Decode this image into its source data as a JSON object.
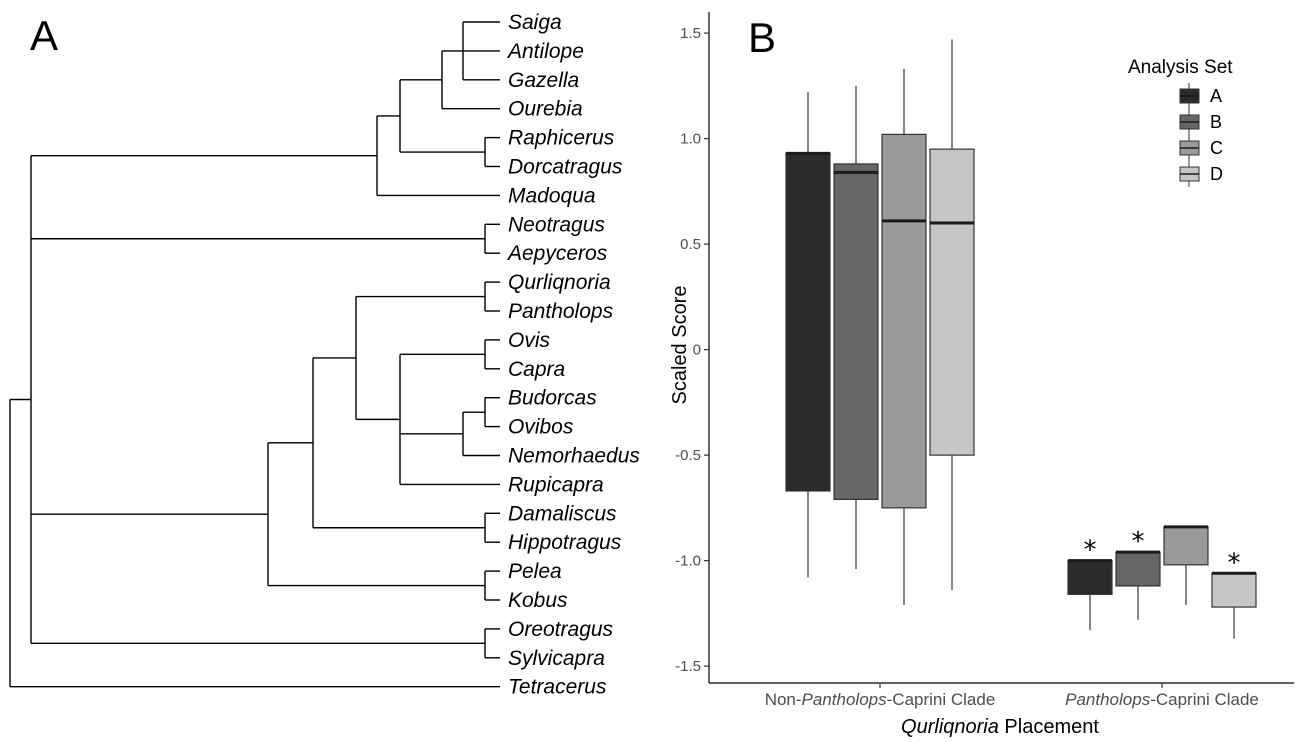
{
  "panels": {
    "a_label": "A",
    "b_label": "B"
  },
  "tree": {
    "taxa": [
      "Saiga",
      "Antilope",
      "Gazella",
      "Ourebia",
      "Raphicerus",
      "Dorcatragus",
      "Madoqua",
      "Neotragus",
      "Aepyceros",
      "Qurliqnoria",
      "Pantholops",
      "Ovis",
      "Capra",
      "Budorcas",
      "Ovibos",
      "Nemorhaedus",
      "Rupicapra",
      "Damaliscus",
      "Hippotragus",
      "Pelea",
      "Kobus",
      "Oreotragus",
      "Sylvicapra",
      "Tetracerus"
    ]
  },
  "chart_data": {
    "type": "boxplot",
    "ylabel": "Scaled Score",
    "xlabel": {
      "italic": "Qurliqnoria",
      "rest": " Placement"
    },
    "categories": [
      {
        "pre": "Non-",
        "italic": "Pantholops",
        "post": "-Caprini Clade"
      },
      {
        "pre": "",
        "italic": "Pantholops",
        "post": "-Caprini Clade"
      }
    ],
    "ylim": [
      -1.5,
      1.5
    ],
    "yticks": [
      1.5,
      1.0,
      0.5,
      0,
      -0.5,
      -1.0,
      -1.5
    ],
    "ytick_labels": [
      "1.5",
      "1.0",
      "0.5",
      "0",
      "-0.5",
      "-1.0",
      "-1.5"
    ],
    "grid": false,
    "legend": {
      "title": "Analysis Set",
      "placement": "top-right",
      "entries": [
        "A",
        "B",
        "C",
        "D"
      ]
    },
    "series": [
      {
        "name": "A",
        "color": "#2b2b2b",
        "boxes": [
          {
            "min": -1.08,
            "q1": -0.67,
            "median": 0.93,
            "q3": 0.93,
            "max": 1.22,
            "star": false
          },
          {
            "min": -1.33,
            "q1": -1.16,
            "median": -1.0,
            "q3": -1.0,
            "max": -1.0,
            "star": true
          }
        ]
      },
      {
        "name": "B",
        "color": "#666666",
        "boxes": [
          {
            "min": -1.04,
            "q1": -0.71,
            "median": 0.84,
            "q3": 0.88,
            "max": 1.25,
            "star": false
          },
          {
            "min": -1.28,
            "q1": -1.12,
            "median": -0.96,
            "q3": -0.96,
            "max": -0.96,
            "star": true
          }
        ]
      },
      {
        "name": "C",
        "color": "#9a9a9a",
        "boxes": [
          {
            "min": -1.21,
            "q1": -0.75,
            "median": 0.61,
            "q3": 1.02,
            "max": 1.33,
            "star": false
          },
          {
            "min": -1.21,
            "q1": -1.02,
            "median": -0.84,
            "q3": -0.84,
            "max": -0.84,
            "star": false
          }
        ]
      },
      {
        "name": "D",
        "color": "#c6c6c6",
        "boxes": [
          {
            "min": -1.14,
            "q1": -0.5,
            "median": 0.6,
            "q3": 0.95,
            "max": 1.47,
            "star": false
          },
          {
            "min": -1.37,
            "q1": -1.22,
            "median": -1.06,
            "q3": -1.06,
            "max": -1.06,
            "star": true
          }
        ]
      }
    ],
    "star_symbol": "*"
  }
}
